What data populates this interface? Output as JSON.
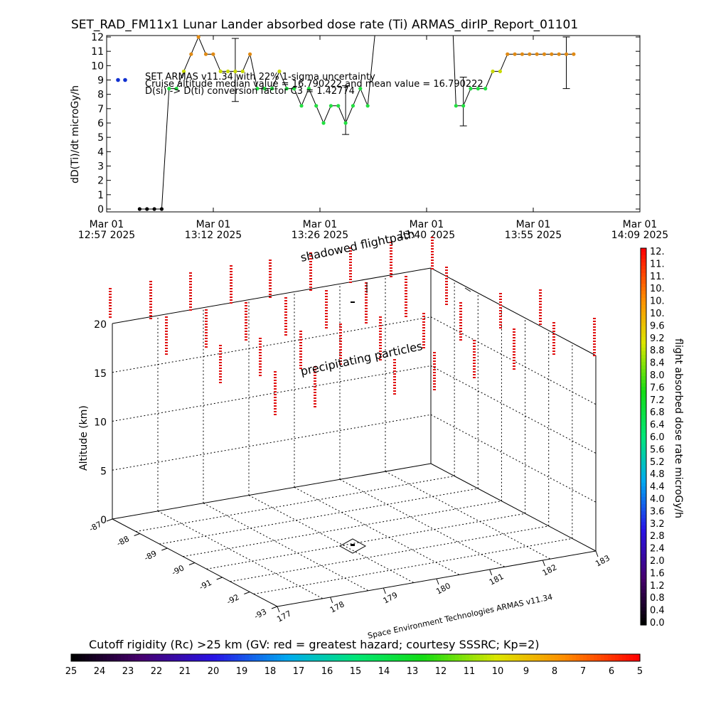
{
  "title": "SET_RAD_FM11x1  Lunar Lander absorbed dose rate (Ti) ARMAS_dirIP_Report_01101",
  "chart_data": [
    {
      "type": "line",
      "ylabel": "dD(Ti)/dt microGy/h",
      "ylim": [
        0,
        12
      ],
      "yticks": [
        "0",
        "1",
        "2",
        "3",
        "4",
        "5",
        "6",
        "7",
        "8",
        "9",
        "10",
        "11",
        "12"
      ],
      "xticks": [
        {
          "top": "Mar 01",
          "bottom": "12:57 2025"
        },
        {
          "top": "Mar 01",
          "bottom": "13:12 2025"
        },
        {
          "top": "Mar 01",
          "bottom": "13:26 2025"
        },
        {
          "top": "Mar 01",
          "bottom": "13:40 2025"
        },
        {
          "top": "Mar 01",
          "bottom": "13:55 2025"
        },
        {
          "top": "Mar 01",
          "bottom": "14:09 2025"
        }
      ],
      "x_minutes_from_axis_start": [
        0,
        1,
        2,
        3,
        4,
        5,
        6,
        7,
        8,
        9,
        10,
        11,
        12,
        13,
        14,
        15,
        16,
        17,
        18,
        19,
        20,
        21,
        22,
        23,
        24,
        25,
        26,
        27,
        28,
        29,
        30,
        31,
        32,
        33,
        34,
        35,
        36,
        37,
        38,
        39,
        40,
        41,
        42,
        43,
        44,
        45,
        46,
        47,
        48,
        49,
        50,
        51,
        52,
        53,
        54,
        55,
        56,
        57,
        58,
        59,
        60,
        61,
        62,
        63,
        64
      ],
      "series": [
        {
          "values": [
            null,
            null,
            null,
            null,
            0,
            0,
            0,
            0,
            8.4,
            8.4,
            9.6,
            10.8,
            12,
            10.8,
            10.8,
            9.6,
            9.6,
            9.6,
            9.6,
            10.8,
            8.4,
            8.4,
            8.4,
            9.6,
            8.4,
            8.4,
            7.2,
            8.4,
            7.2,
            6,
            7.2,
            7.2,
            6,
            7.2,
            8.4,
            7.2,
            null,
            null,
            null,
            null,
            null,
            null,
            null,
            null,
            null,
            null,
            null,
            7.2,
            7.2,
            8.4,
            8.4,
            8.4,
            9.6,
            9.6,
            10.8,
            10.8,
            10.8,
            10.8,
            10.8,
            10.8,
            10.8,
            10.8,
            10.8,
            10.8,
            null
          ]
        }
      ],
      "extra_points": [
        9,
        9
      ],
      "error_bars": [
        {
          "x": 17,
          "low": 7.5,
          "high": 11.9
        },
        {
          "x": 32,
          "low": 5.2,
          "high": 8.6
        },
        {
          "x": 48,
          "low": 5.8,
          "high": 9.2
        },
        {
          "x": 62,
          "low": 8.4,
          "high": 12.0
        }
      ],
      "annotations": [
        "SET ARMAS v11.34 with 22% 1-sigma uncertainty",
        "Cruise altitude median value = 16.790222 and mean value = 16.790222",
        "D(si) -> D(ti) conversion factor C3 = 1.42774"
      ]
    },
    {
      "type": "scatter",
      "zlabel": "Altitude (km)",
      "zticks": [
        "0",
        "5",
        "10",
        "15",
        "20"
      ],
      "lat_ticks": [
        "-87",
        "-88",
        "-89",
        "-90",
        "-91",
        "-92",
        "-93"
      ],
      "lon_ticks": [
        "177",
        "178",
        "179",
        "180",
        "181",
        "182",
        "183"
      ],
      "labels": [
        "shadowed flightpath",
        "precipitating particles"
      ],
      "side_label": "flight absorbed dose rate microGy/h",
      "credit": "Space Environment Technologies ARMAS v11.34"
    }
  ],
  "colorbar_right": {
    "labels": [
      "12.",
      "11.",
      "11.",
      "10.",
      "10.",
      "10.",
      "9.6",
      "9.2",
      "8.8",
      "8.4",
      "8.0",
      "7.6",
      "7.2",
      "6.8",
      "6.4",
      "6.0",
      "5.6",
      "5.2",
      "4.8",
      "4.4",
      "4.0",
      "3.6",
      "3.2",
      "2.8",
      "2.4",
      "2.0",
      "1.6",
      "1.2",
      "0.8",
      "0.4",
      "0.0"
    ]
  },
  "colorbar_bottom": {
    "title": "Cutoff rigidity (Rc) >25 km (GV: red = greatest hazard; courtesy SSSRC; Kp=2)",
    "labels": [
      "25",
      "24",
      "23",
      "22",
      "21",
      "20",
      "19",
      "18",
      "17",
      "16",
      "15",
      "14",
      "13",
      "12",
      "11",
      "10",
      "9",
      "8",
      "7",
      "6",
      "5"
    ]
  }
}
